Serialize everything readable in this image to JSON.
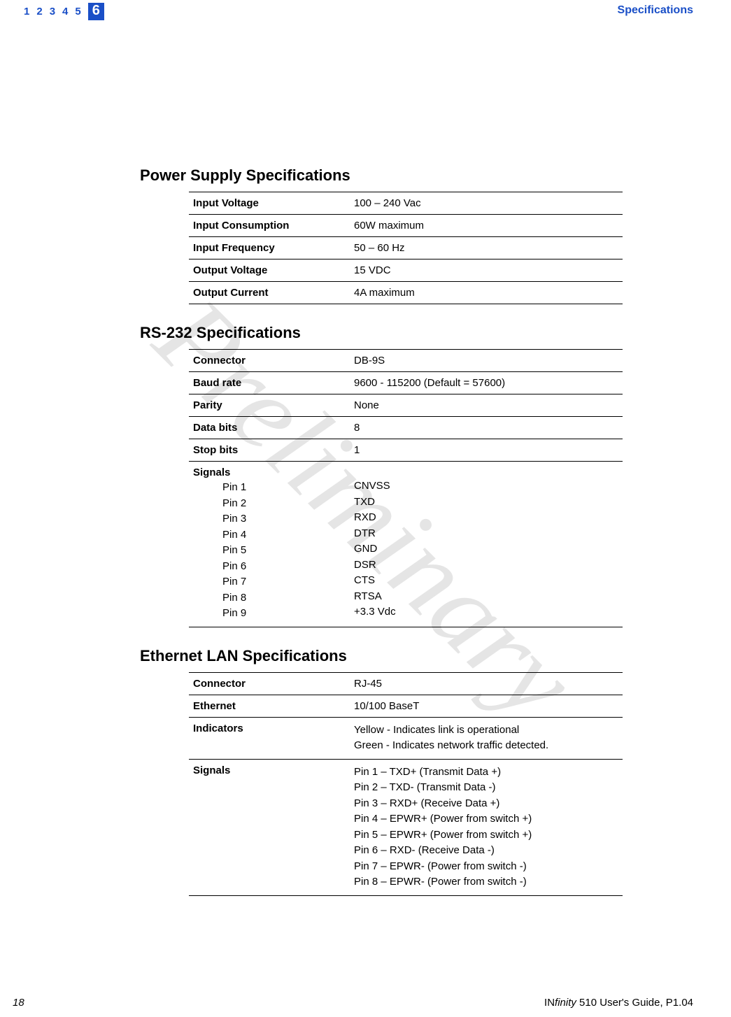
{
  "nav": {
    "items": [
      "1",
      "2",
      "3",
      "4",
      "5"
    ],
    "current": "6"
  },
  "header_right": "Specifications",
  "watermark": "Preliminary",
  "sections": {
    "power": {
      "heading": "Power Supply Specifications",
      "rows": [
        {
          "label": "Input Voltage",
          "value": "100 – 240 Vac"
        },
        {
          "label": "Input Consumption",
          "value": "60W maximum"
        },
        {
          "label": "Input Frequency",
          "value": "50 – 60 Hz"
        },
        {
          "label": "Output Voltage",
          "value": "15 VDC"
        },
        {
          "label": "Output Current",
          "value": "4A maximum"
        }
      ]
    },
    "rs232": {
      "heading": "RS-232 Specifications",
      "rows": [
        {
          "label": "Connector",
          "value": "DB-9S"
        },
        {
          "label": "Baud rate",
          "value": "9600 - 115200 (Default = 57600)"
        },
        {
          "label": "Parity",
          "value": "None"
        },
        {
          "label": "Data bits",
          "value": "8"
        },
        {
          "label": "Stop bits",
          "value": "1"
        }
      ],
      "signals_label": "Signals",
      "pins": [
        {
          "p": "Pin 1",
          "v": "CNVSS"
        },
        {
          "p": "Pin 2",
          "v": "TXD"
        },
        {
          "p": "Pin 3",
          "v": "RXD"
        },
        {
          "p": "Pin 4",
          "v": "DTR"
        },
        {
          "p": "Pin 5",
          "v": "GND"
        },
        {
          "p": "Pin 6",
          "v": "DSR"
        },
        {
          "p": "Pin 7",
          "v": "CTS"
        },
        {
          "p": "Pin 8",
          "v": "RTSA"
        },
        {
          "p": "Pin 9",
          "v": "+3.3 Vdc"
        }
      ]
    },
    "ethernet": {
      "heading": "Ethernet LAN Specifications",
      "rows": [
        {
          "label": "Connector",
          "value": "RJ-45"
        },
        {
          "label": "Ethernet",
          "value": "10/100 BaseT"
        }
      ],
      "indicators_label": "Indicators",
      "indicators": [
        "Yellow - Indicates link is operational",
        "Green - Indicates network traffic detected."
      ],
      "signals_label": "Signals",
      "signals": [
        "Pin 1 – TXD+ (Transmit Data +)",
        "Pin 2 – TXD- (Transmit Data -)",
        "Pin 3 – RXD+ (Receive Data +)",
        "Pin 4 – EPWR+ (Power from switch +)",
        "Pin 5 – EPWR+ (Power from switch +)",
        "Pin 6 – RXD- (Receive Data -)",
        "Pin 7 – EPWR- (Power from switch -)",
        "Pin 8 – EPWR- (Power from switch -)"
      ]
    }
  },
  "footer": {
    "page": "18",
    "guide_prefix": "IN",
    "guide_finity": "finity",
    "guide_rest": " 510 User's Guide, P1.04"
  },
  "colors": {
    "accent": "#1a4fc7",
    "text": "#000000",
    "watermark": "rgba(0,0,0,0.10)"
  }
}
